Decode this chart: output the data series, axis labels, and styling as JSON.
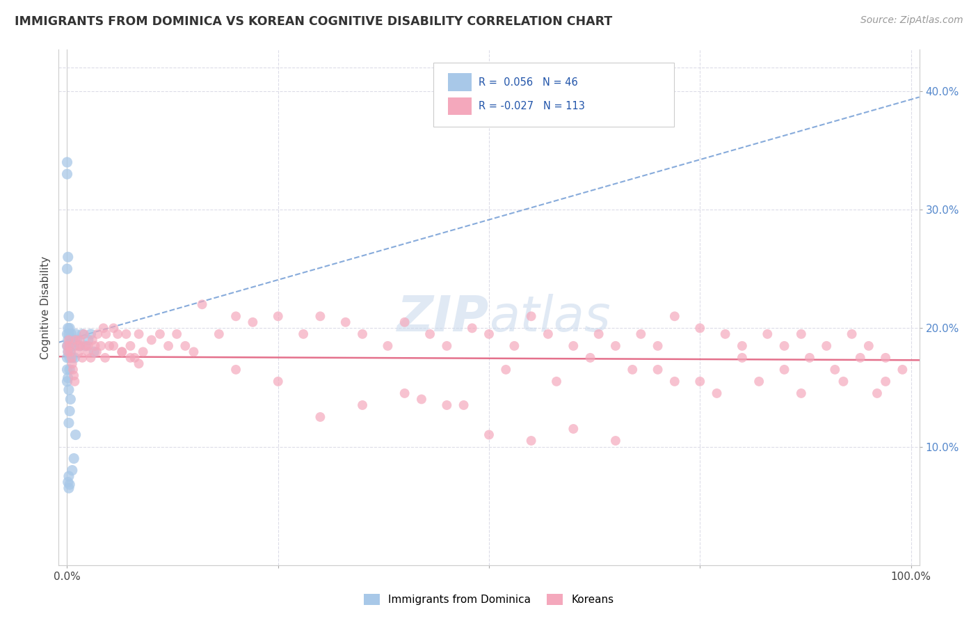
{
  "title": "IMMIGRANTS FROM DOMINICA VS KOREAN COGNITIVE DISABILITY CORRELATION CHART",
  "source": "Source: ZipAtlas.com",
  "ylabel": "Cognitive Disability",
  "yticks": [
    0.1,
    0.2,
    0.3,
    0.4
  ],
  "ytick_labels": [
    "10.0%",
    "20.0%",
    "30.0%",
    "40.0%"
  ],
  "blue_R": 0.056,
  "blue_N": 46,
  "pink_R": -0.027,
  "pink_N": 113,
  "blue_color": "#A8C8E8",
  "pink_color": "#F4A8BC",
  "blue_line_color": "#5588CC",
  "pink_line_color": "#E05878",
  "background_color": "#FFFFFF",
  "grid_color": "#DCDCE8",
  "xlim": [
    0.0,
    1.0
  ],
  "ylim": [
    0.0,
    0.42
  ],
  "blue_trend_y0": 0.188,
  "blue_trend_y1": 0.395,
  "pink_trend_y0": 0.176,
  "pink_trend_y1": 0.173,
  "blue_points_x": [
    0.0,
    0.0,
    0.0,
    0.0,
    0.0,
    0.001,
    0.001,
    0.001,
    0.002,
    0.002,
    0.002,
    0.003,
    0.003,
    0.003,
    0.004,
    0.004,
    0.005,
    0.005,
    0.006,
    0.007,
    0.008,
    0.009,
    0.01,
    0.012,
    0.015,
    0.018,
    0.022,
    0.025,
    0.028,
    0.032,
    0.0,
    0.0,
    0.0,
    0.001,
    0.002,
    0.003,
    0.004,
    0.006,
    0.008,
    0.01,
    0.001,
    0.002,
    0.002,
    0.003,
    0.001,
    0.002
  ],
  "blue_points_y": [
    0.195,
    0.185,
    0.175,
    0.165,
    0.155,
    0.2,
    0.19,
    0.18,
    0.21,
    0.195,
    0.185,
    0.2,
    0.175,
    0.165,
    0.19,
    0.18,
    0.195,
    0.185,
    0.175,
    0.19,
    0.185,
    0.175,
    0.195,
    0.19,
    0.185,
    0.195,
    0.185,
    0.19,
    0.195,
    0.18,
    0.33,
    0.34,
    0.25,
    0.26,
    0.12,
    0.13,
    0.14,
    0.08,
    0.09,
    0.11,
    0.07,
    0.065,
    0.075,
    0.068,
    0.158,
    0.148
  ],
  "pink_points_x": [
    0.0,
    0.001,
    0.002,
    0.003,
    0.004,
    0.005,
    0.006,
    0.007,
    0.008,
    0.009,
    0.01,
    0.012,
    0.014,
    0.016,
    0.018,
    0.02,
    0.022,
    0.025,
    0.028,
    0.03,
    0.033,
    0.036,
    0.04,
    0.043,
    0.046,
    0.05,
    0.055,
    0.06,
    0.065,
    0.07,
    0.075,
    0.08,
    0.085,
    0.09,
    0.1,
    0.11,
    0.12,
    0.13,
    0.14,
    0.15,
    0.16,
    0.18,
    0.2,
    0.22,
    0.25,
    0.28,
    0.3,
    0.33,
    0.35,
    0.38,
    0.4,
    0.43,
    0.45,
    0.48,
    0.5,
    0.53,
    0.55,
    0.57,
    0.6,
    0.63,
    0.65,
    0.68,
    0.7,
    0.72,
    0.75,
    0.78,
    0.8,
    0.83,
    0.85,
    0.87,
    0.9,
    0.93,
    0.95,
    0.97,
    0.99,
    0.5,
    0.55,
    0.6,
    0.65,
    0.7,
    0.75,
    0.8,
    0.85,
    0.88,
    0.91,
    0.94,
    0.97,
    0.4,
    0.45,
    0.2,
    0.25,
    0.3,
    0.35,
    0.42,
    0.47,
    0.52,
    0.58,
    0.62,
    0.67,
    0.72,
    0.77,
    0.82,
    0.87,
    0.92,
    0.96,
    0.015,
    0.025,
    0.035,
    0.045,
    0.055,
    0.065,
    0.075,
    0.085
  ],
  "pink_points_y": [
    0.185,
    0.18,
    0.19,
    0.185,
    0.18,
    0.175,
    0.17,
    0.165,
    0.16,
    0.155,
    0.19,
    0.185,
    0.18,
    0.185,
    0.175,
    0.195,
    0.185,
    0.18,
    0.175,
    0.19,
    0.185,
    0.195,
    0.185,
    0.2,
    0.195,
    0.185,
    0.2,
    0.195,
    0.18,
    0.195,
    0.185,
    0.175,
    0.195,
    0.18,
    0.19,
    0.195,
    0.185,
    0.195,
    0.185,
    0.18,
    0.22,
    0.195,
    0.21,
    0.205,
    0.21,
    0.195,
    0.21,
    0.205,
    0.195,
    0.185,
    0.205,
    0.195,
    0.185,
    0.2,
    0.195,
    0.185,
    0.21,
    0.195,
    0.185,
    0.195,
    0.185,
    0.195,
    0.185,
    0.21,
    0.2,
    0.195,
    0.185,
    0.195,
    0.185,
    0.195,
    0.185,
    0.195,
    0.185,
    0.175,
    0.165,
    0.11,
    0.105,
    0.115,
    0.105,
    0.165,
    0.155,
    0.175,
    0.165,
    0.175,
    0.165,
    0.175,
    0.155,
    0.145,
    0.135,
    0.165,
    0.155,
    0.125,
    0.135,
    0.14,
    0.135,
    0.165,
    0.155,
    0.175,
    0.165,
    0.155,
    0.145,
    0.155,
    0.145,
    0.155,
    0.145,
    0.19,
    0.185,
    0.18,
    0.175,
    0.185,
    0.18,
    0.175,
    0.17
  ]
}
